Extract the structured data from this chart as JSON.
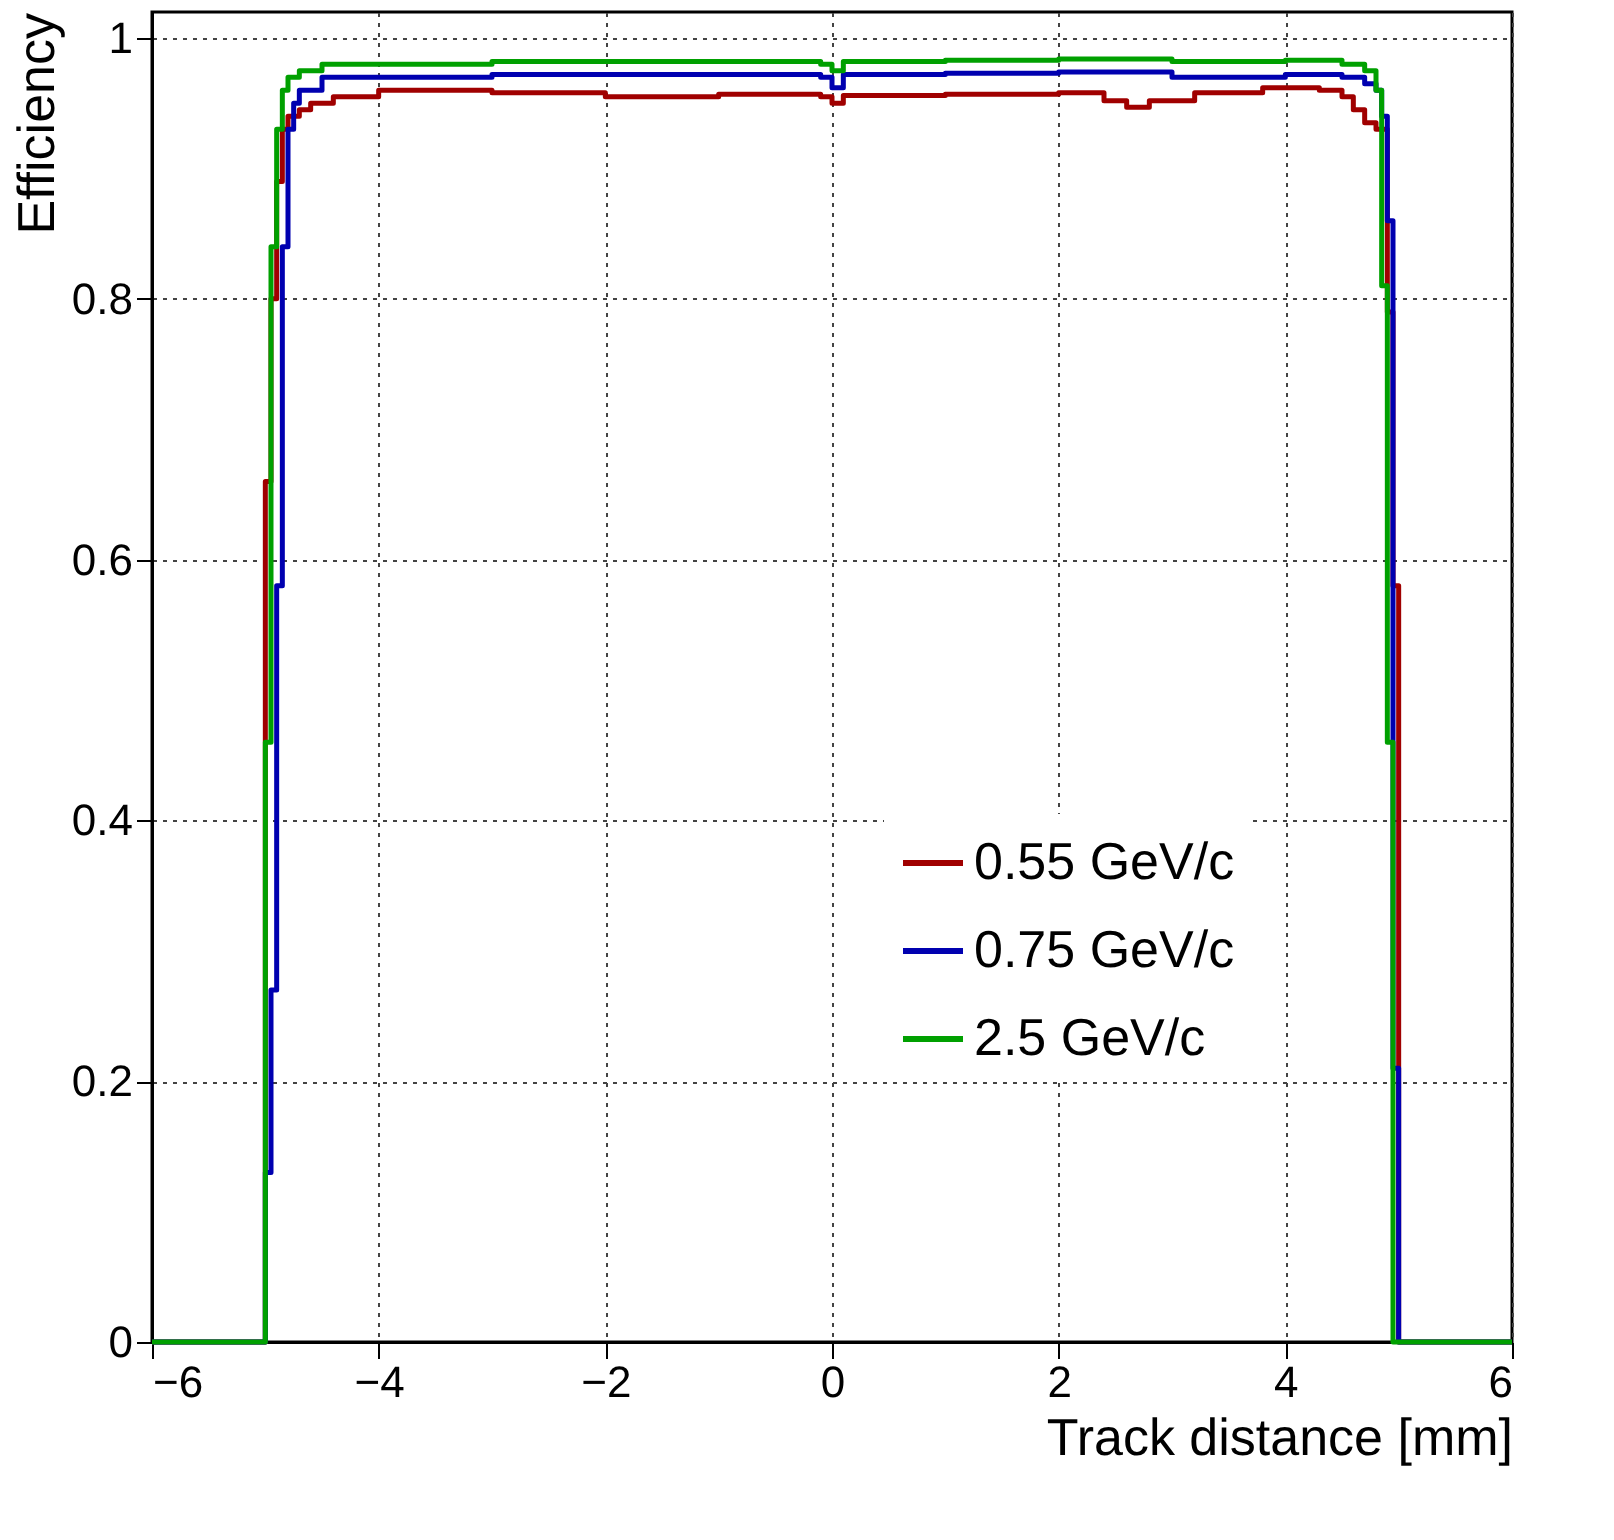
{
  "chart_data": {
    "type": "step",
    "xlabel": "Track distance [mm]",
    "ylabel": "Efficiency",
    "xlim": [
      -6,
      6
    ],
    "xticks": [
      -6,
      -4,
      -2,
      0,
      2,
      4,
      6
    ],
    "ylim": [
      0,
      1.02
    ],
    "yticks": [
      0,
      0.2,
      0.4,
      0.6,
      0.8,
      1
    ],
    "grid": true,
    "legend": "bottom right",
    "line_style": "solid",
    "series": [
      {
        "name": "0.55 GeV/c",
        "color": "#a00000",
        "x": [
          -6,
          -5.0,
          -4.95,
          -4.9,
          -4.85,
          -4.8,
          -4.7,
          -4.6,
          -4.4,
          -4.0,
          -3.0,
          -2.0,
          -1.0,
          -0.1,
          0.0,
          0.1,
          1.0,
          2.0,
          2.4,
          2.6,
          2.8,
          3.2,
          3.8,
          4.3,
          4.5,
          4.6,
          4.7,
          4.8,
          4.9,
          4.95,
          5.0,
          6
        ],
        "values": [
          0,
          0.66,
          0.8,
          0.89,
          0.93,
          0.94,
          0.945,
          0.95,
          0.955,
          0.96,
          0.958,
          0.955,
          0.957,
          0.955,
          0.95,
          0.956,
          0.957,
          0.958,
          0.952,
          0.947,
          0.952,
          0.958,
          0.962,
          0.96,
          0.955,
          0.945,
          0.935,
          0.93,
          0.79,
          0.58,
          0,
          0
        ]
      },
      {
        "name": "0.75 GeV/c",
        "color": "#0000b0",
        "x": [
          -6,
          -5.0,
          -4.95,
          -4.9,
          -4.85,
          -4.8,
          -4.75,
          -4.7,
          -4.5,
          -3.0,
          -1.0,
          -0.1,
          0.0,
          0.1,
          1.0,
          2.0,
          3.0,
          4.0,
          4.5,
          4.7,
          4.8,
          4.85,
          4.9,
          4.95,
          5.0,
          6
        ],
        "values": [
          0,
          0.13,
          0.27,
          0.58,
          0.84,
          0.93,
          0.95,
          0.96,
          0.97,
          0.972,
          0.972,
          0.97,
          0.962,
          0.972,
          0.973,
          0.974,
          0.97,
          0.972,
          0.97,
          0.965,
          0.96,
          0.94,
          0.86,
          0.21,
          0,
          0
        ]
      },
      {
        "name": "2.5 GeV/c",
        "color": "#00a000",
        "x": [
          -6,
          -5.0,
          -4.95,
          -4.9,
          -4.85,
          -4.8,
          -4.7,
          -4.5,
          -3.0,
          -1.0,
          -0.1,
          0.0,
          0.1,
          1.0,
          2.0,
          3.0,
          4.0,
          4.5,
          4.7,
          4.8,
          4.85,
          4.9,
          4.95,
          6
        ],
        "values": [
          0,
          0.46,
          0.84,
          0.93,
          0.96,
          0.97,
          0.975,
          0.98,
          0.982,
          0.982,
          0.98,
          0.975,
          0.982,
          0.983,
          0.984,
          0.982,
          0.983,
          0.98,
          0.975,
          0.96,
          0.81,
          0.46,
          0,
          0
        ]
      }
    ]
  }
}
